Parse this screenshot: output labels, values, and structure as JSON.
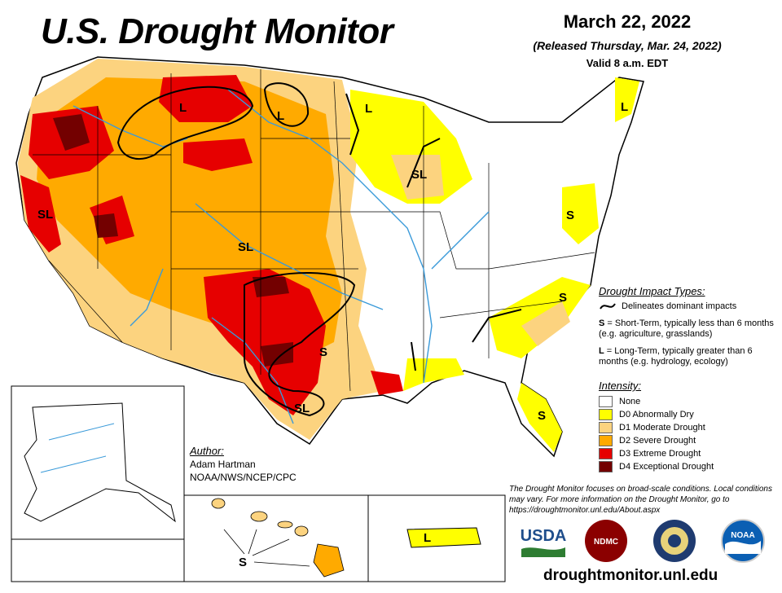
{
  "header": {
    "title": "U.S. Drought Monitor",
    "date": "March 22, 2022",
    "released": "(Released Thursday, Mar. 24, 2022)",
    "valid": "Valid 8 a.m. EDT"
  },
  "map_labels": {
    "l_montana": "L",
    "l_montana_east": "L",
    "l_minnesota": "L",
    "l_maine": "L",
    "l_puerto_rico": "L",
    "sl_california": "SL",
    "sl_wisconsin": "SL",
    "sl_southwest": "SL",
    "sl_texas": "SL",
    "s_maryland": "S",
    "s_carolina": "S",
    "s_texas": "S",
    "s_florida": "S",
    "s_hawaii": "S"
  },
  "impact_legend": {
    "heading": "Drought Impact Types:",
    "delineates": "Delineates dominant impacts",
    "short_term_letter": "S",
    "short_term": " = Short-Term, typically less than 6 months (e.g. agriculture, grasslands)",
    "long_term_letter": "L",
    "long_term": " = Long-Term, typically greater than 6 months (e.g. hydrology, ecology)"
  },
  "intensity_legend": {
    "heading": "Intensity:",
    "items": [
      {
        "label": "None",
        "color": "#ffffff"
      },
      {
        "label": "D0 Abnormally Dry",
        "color": "#ffff00"
      },
      {
        "label": "D1 Moderate Drought",
        "color": "#fcd37f"
      },
      {
        "label": "D2 Severe Drought",
        "color": "#ffaa00"
      },
      {
        "label": "D3 Extreme Drought",
        "color": "#e60000"
      },
      {
        "label": "D4 Exceptional Drought",
        "color": "#730000"
      }
    ]
  },
  "author": {
    "heading": "Author:",
    "name": "Adam Hartman",
    "org": "NOAA/NWS/NCEP/CPC"
  },
  "note": "The Drought Monitor focuses on broad-scale conditions. Local conditions may vary. For more information on the Drought Monitor, go to https://droughtmonitor.unl.edu/About.aspx",
  "logos": {
    "usda": "USDA",
    "ndmc": "NDMC",
    "noaa": "NOAA"
  },
  "url": "droughtmonitor.unl.edu",
  "colors": {
    "d0": "#ffff00",
    "d1": "#fcd37f",
    "d2": "#ffaa00",
    "d3": "#e60000",
    "d4": "#730000",
    "river": "#3a9ad9",
    "boundary": "#000000"
  }
}
